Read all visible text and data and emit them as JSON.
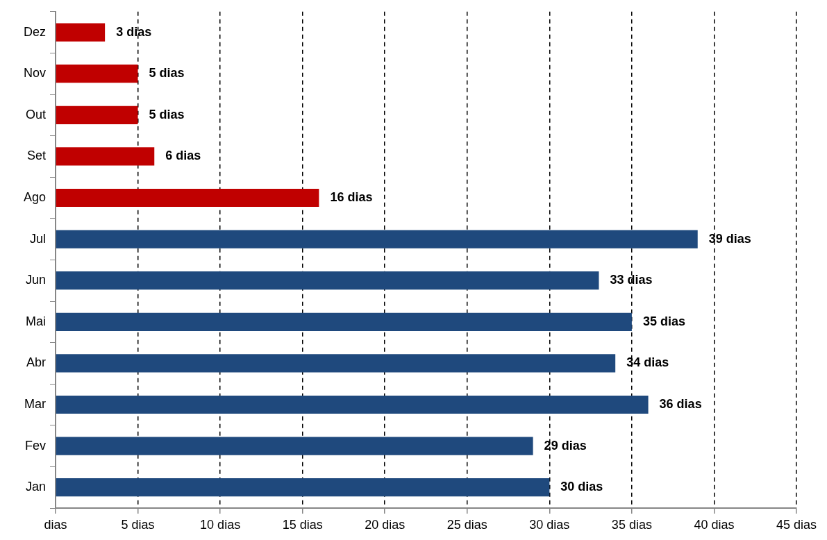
{
  "chart_data": {
    "type": "bar",
    "orientation": "horizontal",
    "categories": [
      "Dez",
      "Nov",
      "Out",
      "Set",
      "Ago",
      "Jul",
      "Jun",
      "Mai",
      "Abr",
      "Mar",
      "Fev",
      "Jan"
    ],
    "values": [
      3,
      5,
      5,
      6,
      16,
      39,
      33,
      35,
      34,
      36,
      29,
      30
    ],
    "colors": [
      "#c00000",
      "#c00000",
      "#c00000",
      "#c00000",
      "#c00000",
      "#1f497d",
      "#1f497d",
      "#1f497d",
      "#1f497d",
      "#1f497d",
      "#1f497d",
      "#1f497d"
    ],
    "value_labels": [
      "3 dias",
      "5 dias",
      "5 dias",
      "6 dias",
      "16 dias",
      "39 dias",
      "33 dias",
      "35 dias",
      "34 dias",
      "36 dias",
      "29 dias",
      "30 dias"
    ],
    "xlim": [
      0,
      45
    ],
    "xticks": [
      {
        "value": 0,
        "label": "dias"
      },
      {
        "value": 5,
        "label": "5 dias"
      },
      {
        "value": 10,
        "label": "10 dias"
      },
      {
        "value": 15,
        "label": "15 dias"
      },
      {
        "value": 20,
        "label": "20 dias"
      },
      {
        "value": 25,
        "label": "25 dias"
      },
      {
        "value": 30,
        "label": "30 dias"
      },
      {
        "value": 35,
        "label": "35 dias"
      },
      {
        "value": 40,
        "label": "40 dias"
      },
      {
        "value": 45,
        "label": "45 dias"
      }
    ],
    "grid": "x"
  }
}
